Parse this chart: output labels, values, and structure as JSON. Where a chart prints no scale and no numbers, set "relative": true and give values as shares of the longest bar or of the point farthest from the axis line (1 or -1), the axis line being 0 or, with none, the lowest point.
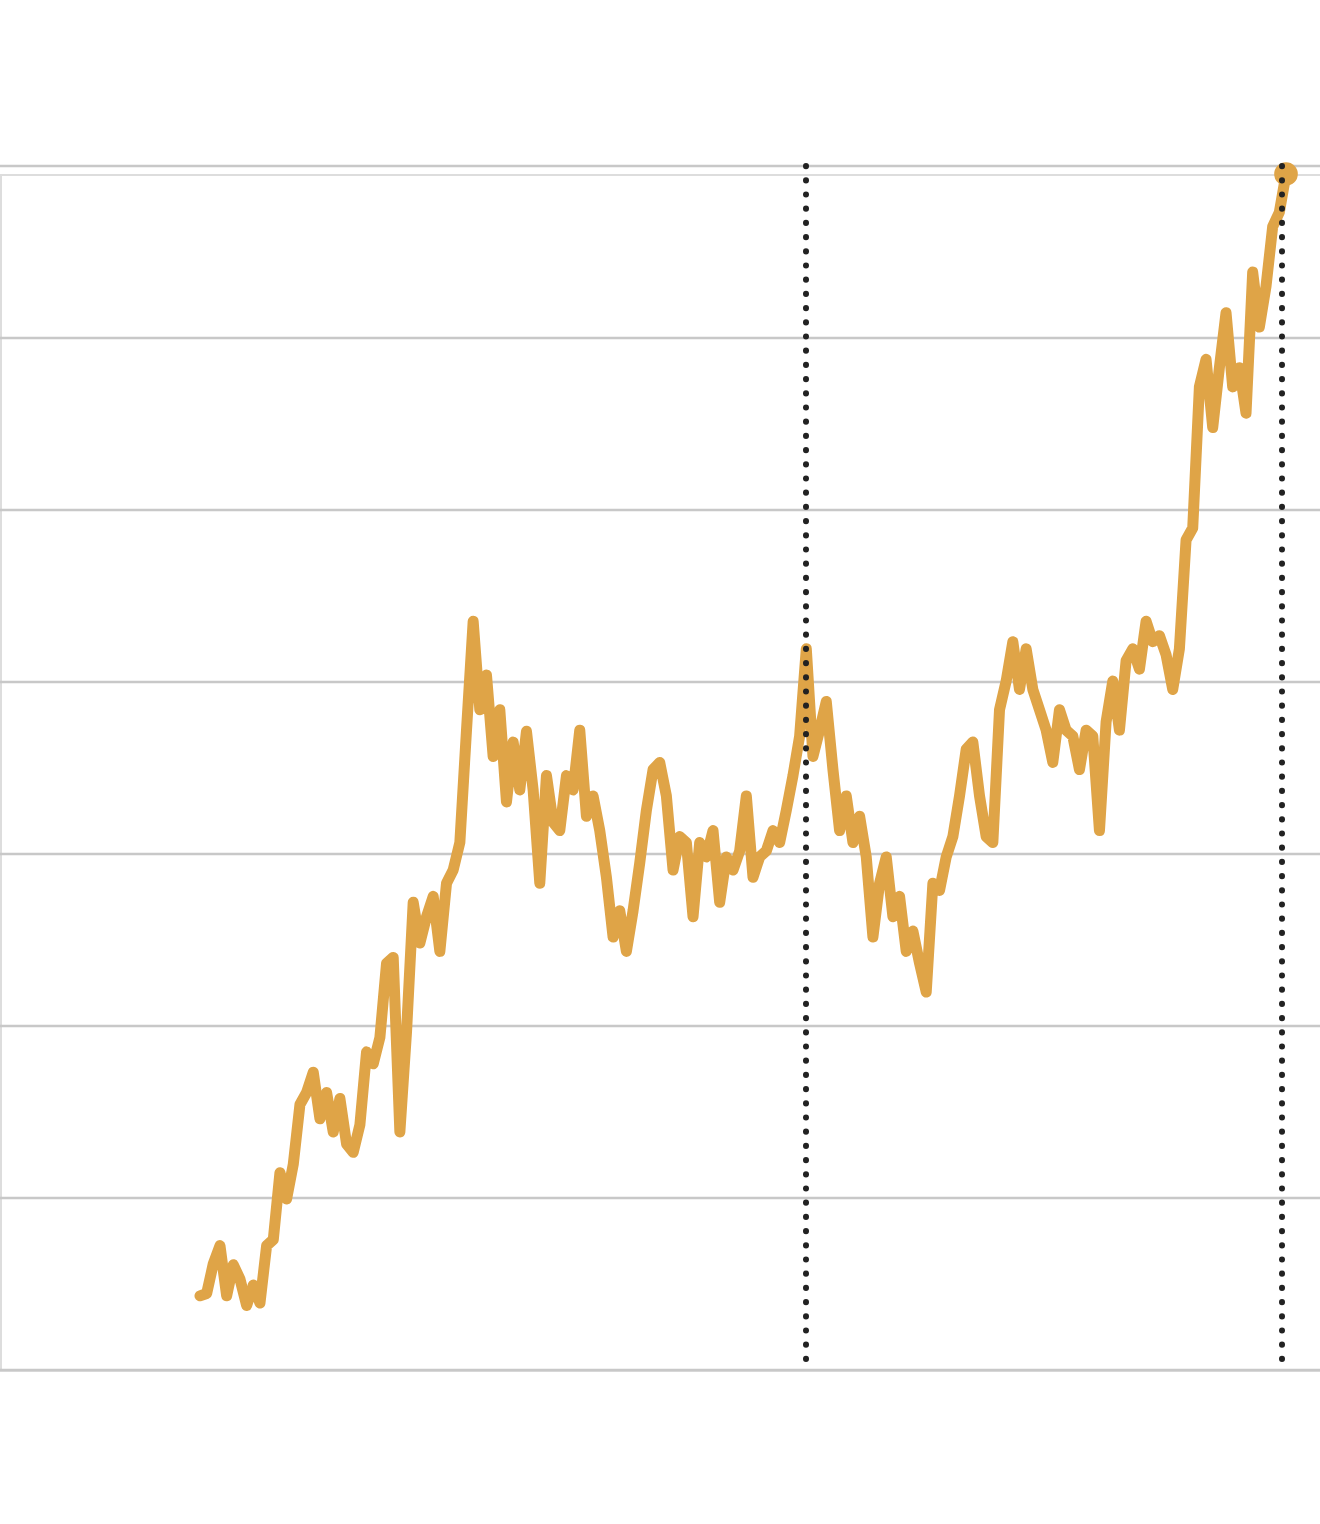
{
  "chart_data": {
    "type": "line",
    "relative": true,
    "categories": [
      null,
      null,
      null,
      null,
      null,
      null,
      null,
      null,
      null,
      null,
      null,
      null,
      null,
      null,
      null,
      null,
      null,
      null,
      null,
      null,
      null,
      null,
      null,
      null,
      null,
      null,
      null,
      null,
      null,
      null,
      null,
      null,
      null,
      null,
      null,
      null,
      null,
      null,
      null,
      null,
      null,
      null,
      null,
      null,
      null,
      null,
      null,
      null,
      null,
      null,
      null,
      null,
      null,
      null,
      null,
      null,
      null,
      null,
      null,
      null,
      null,
      null,
      null,
      null,
      null,
      null,
      null,
      null,
      null,
      null,
      null,
      null,
      null,
      null,
      null,
      null,
      null,
      null,
      null,
      null,
      null,
      null,
      null,
      null,
      null,
      null,
      null,
      null,
      null,
      null,
      null,
      null,
      null,
      null,
      null,
      null,
      null,
      null,
      null,
      null,
      null,
      null,
      null,
      null,
      null,
      null,
      null,
      null,
      null,
      null,
      null,
      null,
      null,
      null,
      null,
      null,
      null,
      null,
      null,
      null,
      null,
      null,
      null,
      null,
      null,
      null,
      null,
      null,
      null,
      null,
      null,
      null,
      null,
      null,
      null,
      null,
      null,
      null,
      null,
      null,
      null,
      null,
      null,
      null,
      null,
      null,
      null,
      null,
      null,
      null,
      null,
      null,
      null,
      null,
      null,
      null,
      null,
      null,
      null,
      null,
      null,
      null,
      null,
      null
    ],
    "series": [
      {
        "color": "#dfa447",
        "values": [
          0.062,
          0.064,
          0.089,
          0.104,
          0.062,
          0.088,
          0.076,
          0.054,
          0.071,
          0.056,
          0.104,
          0.109,
          0.165,
          0.143,
          0.172,
          0.222,
          0.232,
          0.249,
          0.21,
          0.232,
          0.199,
          0.227,
          0.189,
          0.182,
          0.205,
          0.266,
          0.256,
          0.278,
          0.34,
          0.345,
          0.199,
          0.283,
          0.391,
          0.357,
          0.379,
          0.396,
          0.35,
          0.407,
          0.418,
          0.441,
          0.535,
          0.626,
          0.552,
          0.581,
          0.513,
          0.552,
          0.475,
          0.525,
          0.485,
          0.534,
          0.485,
          0.407,
          0.497,
          0.458,
          0.451,
          0.497,
          0.485,
          0.535,
          0.463,
          0.48,
          0.451,
          0.412,
          0.362,
          0.384,
          0.35,
          0.384,
          0.424,
          0.468,
          0.502,
          0.508,
          0.48,
          0.418,
          0.446,
          0.441,
          0.379,
          0.441,
          0.429,
          0.451,
          0.391,
          0.429,
          0.418,
          0.434,
          0.48,
          0.412,
          0.429,
          0.434,
          0.451,
          0.441,
          0.468,
          0.497,
          0.53,
          0.603,
          0.513,
          0.535,
          0.559,
          0.502,
          0.451,
          0.48,
          0.441,
          0.463,
          0.429,
          0.362,
          0.407,
          0.429,
          0.379,
          0.396,
          0.35,
          0.367,
          0.34,
          0.316,
          0.407,
          0.401,
          0.429,
          0.446,
          0.48,
          0.519,
          0.525,
          0.48,
          0.446,
          0.441,
          0.552,
          0.576,
          0.609,
          0.569,
          0.603,
          0.569,
          0.552,
          0.535,
          0.508,
          0.552,
          0.535,
          0.53,
          0.502,
          0.535,
          0.53,
          0.451,
          0.542,
          0.576,
          0.535,
          0.593,
          0.603,
          0.586,
          0.626,
          0.609,
          0.614,
          0.598,
          0.569,
          0.603,
          0.694,
          0.704,
          0.822,
          0.845,
          0.788,
          0.838,
          0.884,
          0.822,
          0.838,
          0.8,
          0.918,
          0.872,
          0.906,
          0.956,
          0.968,
          1.0
        ]
      }
    ],
    "grid": "y"
  }
}
